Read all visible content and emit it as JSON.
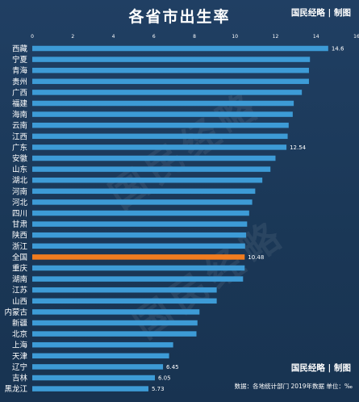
{
  "title": "各省市出生率",
  "brand": "国民经略 | 制图",
  "source_text": "数据：各地统计部门 2019年数据 单位：‰",
  "watermark_text": "国民经略",
  "colors": {
    "bar": "#3d9bd6",
    "highlight": "#f07c1f",
    "label": "#ffffff",
    "tick": "#ffffff"
  },
  "chart_data": {
    "type": "bar",
    "orientation": "horizontal",
    "title": "各省市出生率",
    "xlim": [
      0,
      16
    ],
    "x_ticks": [
      0,
      2,
      4,
      6,
      8,
      10,
      12,
      14,
      16
    ],
    "categories": [
      "西藏",
      "宁夏",
      "青海",
      "贵州",
      "广西",
      "福建",
      "海南",
      "云南",
      "江西",
      "广东",
      "安徽",
      "山东",
      "湖北",
      "河南",
      "河北",
      "四川",
      "甘肃",
      "陕西",
      "浙江",
      "全国",
      "重庆",
      "湖南",
      "江苏",
      "山西",
      "内蒙古",
      "新疆",
      "北京",
      "上海",
      "天津",
      "辽宁",
      "吉林",
      "黑龙江"
    ],
    "values": [
      14.6,
      13.7,
      13.65,
      13.65,
      13.3,
      12.9,
      12.85,
      12.65,
      12.6,
      12.54,
      12.0,
      11.75,
      11.35,
      11.0,
      10.85,
      10.7,
      10.6,
      10.55,
      10.5,
      10.48,
      10.48,
      10.4,
      9.1,
      9.1,
      8.25,
      8.15,
      8.1,
      6.95,
      6.75,
      6.45,
      6.05,
      5.73
    ],
    "highlight_category": "全国",
    "data_labels": {
      "西藏": "14.6",
      "广东": "12.54",
      "全国": "10.48",
      "辽宁": "6.45",
      "吉林": "6.05",
      "黑龙江": "5.73"
    }
  }
}
